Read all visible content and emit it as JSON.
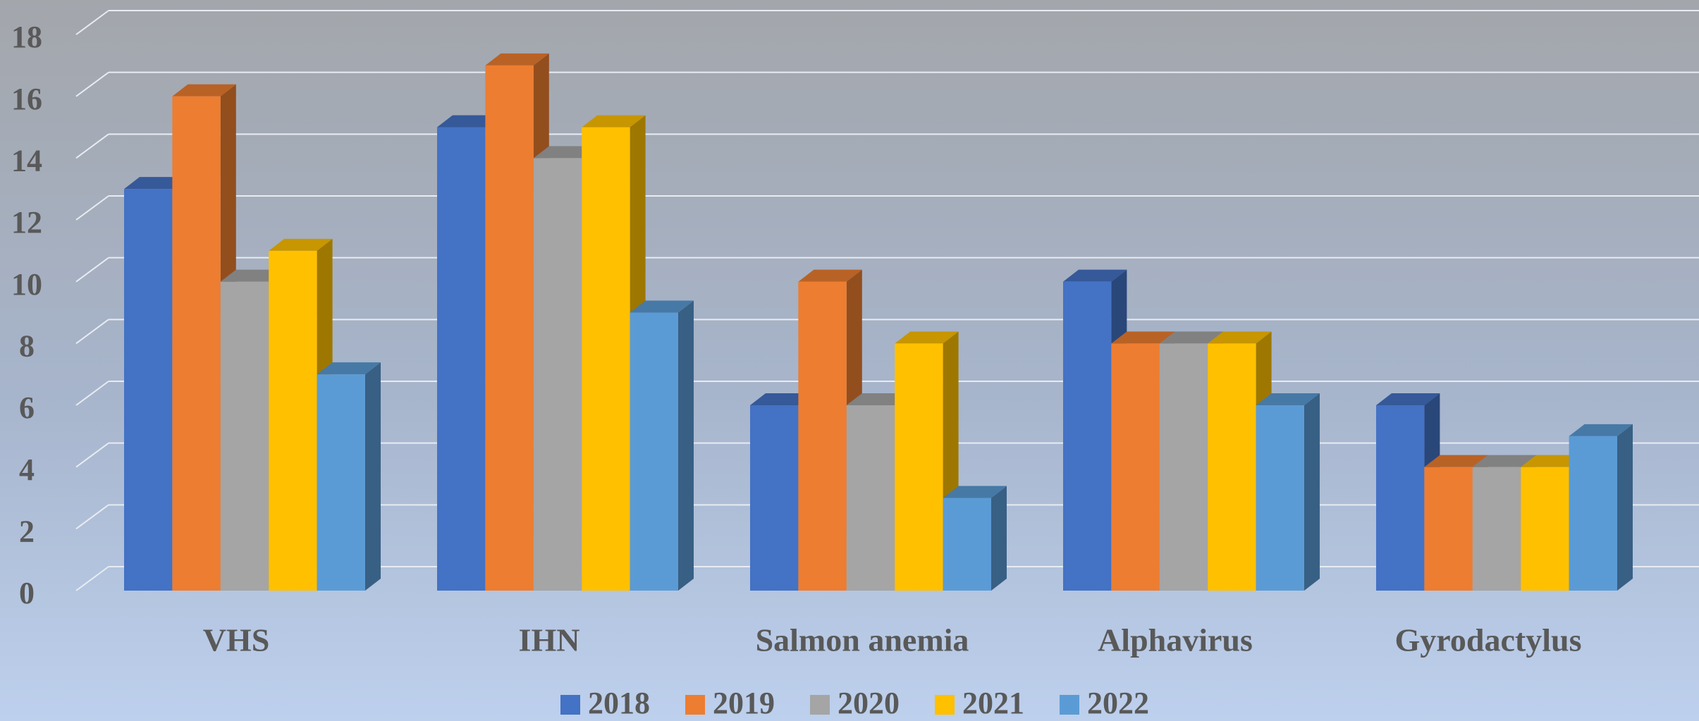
{
  "chart_data": {
    "type": "bar3d",
    "categories": [
      "VHS",
      "IHN",
      "Salmon anemia",
      "Alphavirus",
      "Gyrodactylus"
    ],
    "series": [
      {
        "name": "2018",
        "color": "#4472c4",
        "values": [
          13,
          15,
          6,
          10,
          6
        ]
      },
      {
        "name": "2019",
        "color": "#ed7d31",
        "values": [
          16,
          17,
          10,
          8,
          4
        ]
      },
      {
        "name": "2020",
        "color": "#a5a5a5",
        "values": [
          10,
          14,
          6,
          8,
          4
        ]
      },
      {
        "name": "2021",
        "color": "#ffc000",
        "values": [
          11,
          15,
          8,
          8,
          4
        ]
      },
      {
        "name": "2022",
        "color": "#5b9bd5",
        "values": [
          7,
          9,
          3,
          6,
          5
        ]
      }
    ],
    "ylim": [
      0,
      18
    ],
    "yticks": [
      0,
      2,
      4,
      6,
      8,
      10,
      12,
      14,
      16,
      18
    ],
    "grid": true,
    "legend": "bottom"
  }
}
